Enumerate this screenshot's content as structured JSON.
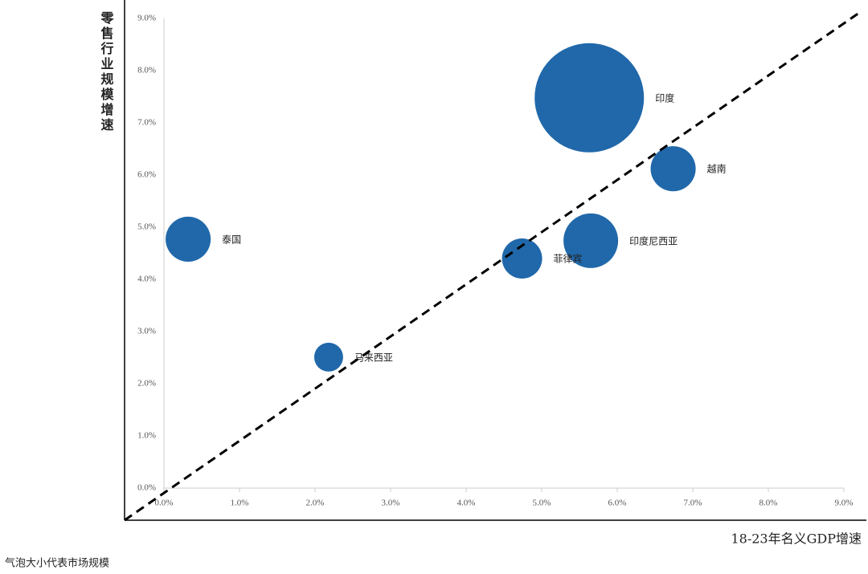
{
  "chart_data": {
    "type": "bubble",
    "x_label": "18-23年名义GDP增速",
    "y_label": "零售行业规模增速",
    "note": "气泡大小代表市场规模",
    "color": "#2068aa",
    "labels": [
      "印度",
      "越南",
      "泰国",
      "印度尼西亚",
      "菲律宾",
      "马来西亚"
    ],
    "x": [
      5.63,
      6.74,
      0.32,
      5.65,
      4.74,
      2.18
    ],
    "values": [
      7.48,
      6.12,
      4.77,
      4.74,
      4.4,
      2.51
    ],
    "sizes": [
      100,
      17,
      17,
      25,
      13.5,
      7
    ],
    "xlim": [
      0,
      9
    ],
    "ylim": [
      0,
      9
    ],
    "xticks": [
      {
        "value": 0,
        "label": "0.0%"
      },
      {
        "value": 1,
        "label": "1.0%"
      },
      {
        "value": 2,
        "label": "2.0%"
      },
      {
        "value": 3,
        "label": "3.0%"
      },
      {
        "value": 4,
        "label": "4.0%"
      },
      {
        "value": 5,
        "label": "5.0%"
      },
      {
        "value": 6,
        "label": "6.0%"
      },
      {
        "value": 7,
        "label": "7.0%"
      },
      {
        "value": 8,
        "label": "8.0%"
      },
      {
        "value": 9,
        "label": "9.0%"
      }
    ],
    "yticks": [
      {
        "value": 0,
        "label": "0.0%"
      },
      {
        "value": 1,
        "label": "1.0%"
      },
      {
        "value": 2,
        "label": "2.0%"
      },
      {
        "value": 3,
        "label": "3.0%"
      },
      {
        "value": 4,
        "label": "4.0%"
      },
      {
        "value": 5,
        "label": "5.0%"
      },
      {
        "value": 6,
        "label": "6.0%"
      },
      {
        "value": 7,
        "label": "7.0%"
      },
      {
        "value": 8,
        "label": "8.0%"
      },
      {
        "value": 9,
        "label": "9.0%"
      }
    ]
  }
}
